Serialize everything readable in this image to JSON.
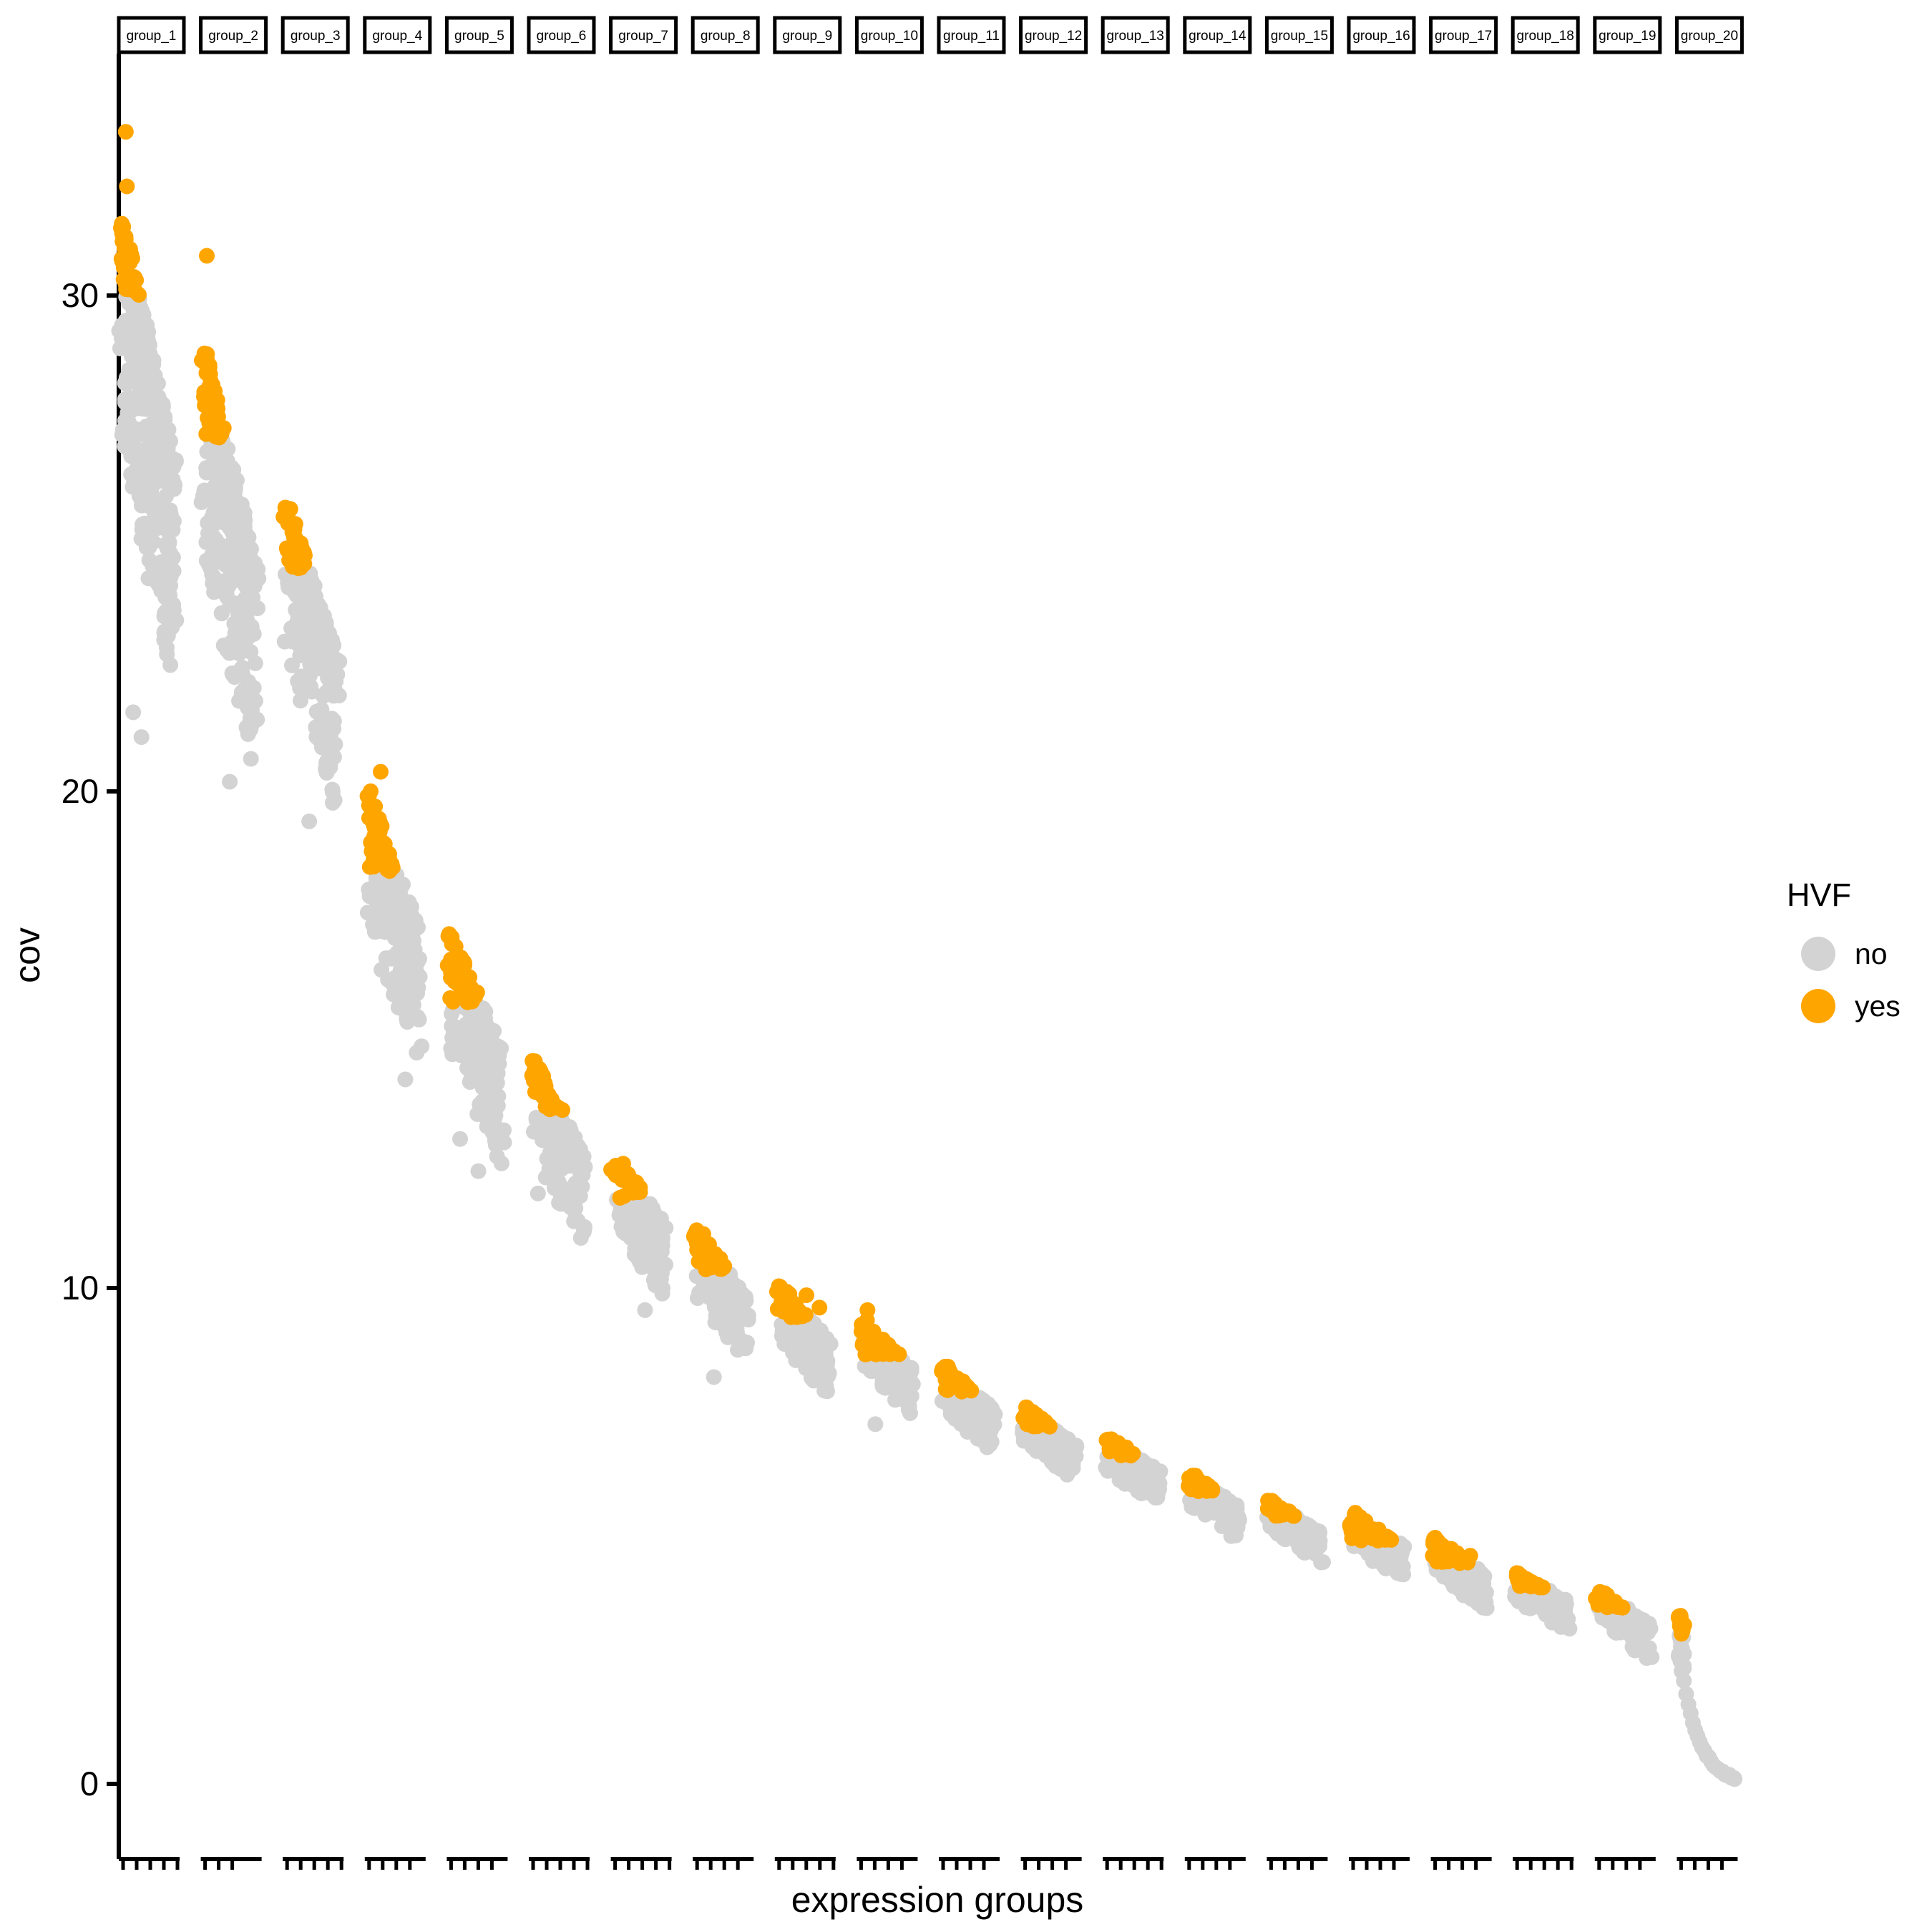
{
  "plot": {
    "x_axis_title": "expression groups",
    "y_axis_title": "cov",
    "background": "#ffffff",
    "axis_color": "#000000"
  },
  "legend": {
    "title": "HVF",
    "items": [
      {
        "label": "no",
        "color": "#D3D3D3"
      },
      {
        "label": "yes",
        "color": "#FFA500"
      }
    ]
  },
  "chart_data": {
    "type": "scatter",
    "subtype": "faceted-jitter-strip",
    "xlabel": "expression groups",
    "ylabel": "cov",
    "ylim": [
      0,
      34.5
    ],
    "y_ticks": [
      {
        "value": 0,
        "label": "0"
      },
      {
        "value": 10,
        "label": "10"
      },
      {
        "value": 20,
        "label": "20"
      },
      {
        "value": 30,
        "label": "30"
      }
    ],
    "grid": "off",
    "legend_position": "right",
    "point_colors": {
      "no": "#D3D3D3",
      "yes": "#FFA500"
    },
    "facets": [
      {
        "label": "group_1",
        "cov_top": 31.6,
        "cov_bottom": 22.6,
        "hvf_threshold": 30.0,
        "outliers": [
          {
            "t": 0.08,
            "cov": 33.3,
            "hvf": "yes"
          },
          {
            "t": 0.1,
            "cov": 32.2,
            "hvf": "yes"
          },
          {
            "t": 0.22,
            "cov": 21.6,
            "hvf": "no"
          },
          {
            "t": 0.38,
            "cov": 21.1,
            "hvf": "no"
          }
        ]
      },
      {
        "label": "group_2",
        "cov_top": 29.0,
        "cov_bottom": 20.8,
        "hvf_threshold": 27.1,
        "outliers": [
          {
            "t": 0.06,
            "cov": 30.8,
            "hvf": "yes"
          },
          {
            "t": 0.5,
            "cov": 20.2,
            "hvf": "no"
          }
        ]
      },
      {
        "label": "group_3",
        "cov_top": 25.9,
        "cov_bottom": 19.9,
        "hvf_threshold": 24.5,
        "outliers": [
          {
            "t": 0.45,
            "cov": 19.4,
            "hvf": "no"
          }
        ]
      },
      {
        "label": "group_4",
        "cov_top": 20.1,
        "cov_bottom": 14.6,
        "hvf_threshold": 18.4,
        "outliers": [
          {
            "t": 0.25,
            "cov": 20.4,
            "hvf": "yes"
          },
          {
            "t": 0.72,
            "cov": 14.2,
            "hvf": "no"
          }
        ]
      },
      {
        "label": "group_5",
        "cov_top": 17.2,
        "cov_bottom": 12.7,
        "hvf_threshold": 15.7,
        "outliers": [
          {
            "t": 0.2,
            "cov": 13.0,
            "hvf": "no"
          },
          {
            "t": 0.55,
            "cov": 12.35,
            "hvf": "no"
          }
        ]
      },
      {
        "label": "group_6",
        "cov_top": 14.7,
        "cov_bottom": 11.0,
        "hvf_threshold": 13.55,
        "outliers": [
          {
            "t": 0.12,
            "cov": 11.9,
            "hvf": "no"
          }
        ]
      },
      {
        "label": "group_7",
        "cov_top": 12.8,
        "cov_bottom": 9.9,
        "hvf_threshold": 11.8,
        "outliers": [
          {
            "t": 0.6,
            "cov": 9.55,
            "hvf": "no"
          }
        ]
      },
      {
        "label": "group_8",
        "cov_top": 11.25,
        "cov_bottom": 8.5,
        "hvf_threshold": 10.35,
        "outliers": [
          {
            "t": 0.35,
            "cov": 8.2,
            "hvf": "no"
          }
        ]
      },
      {
        "label": "group_9",
        "cov_top": 10.1,
        "cov_bottom": 7.9,
        "hvf_threshold": 9.4,
        "outliers": [
          {
            "t": 0.55,
            "cov": 9.85,
            "hvf": "yes"
          },
          {
            "t": 0.8,
            "cov": 9.6,
            "hvf": "yes"
          }
        ]
      },
      {
        "label": "group_10",
        "cov_top": 9.45,
        "cov_bottom": 7.5,
        "hvf_threshold": 8.65,
        "outliers": [
          {
            "t": 0.15,
            "cov": 9.55,
            "hvf": "yes"
          },
          {
            "t": 0.3,
            "cov": 7.25,
            "hvf": "no"
          }
        ]
      },
      {
        "label": "group_11",
        "cov_top": 8.5,
        "cov_bottom": 6.75,
        "hvf_threshold": 7.9,
        "outliers": []
      },
      {
        "label": "group_12",
        "cov_top": 7.65,
        "cov_bottom": 6.2,
        "hvf_threshold": 7.2,
        "outliers": []
      },
      {
        "label": "group_13",
        "cov_top": 7.05,
        "cov_bottom": 5.7,
        "hvf_threshold": 6.6,
        "outliers": []
      },
      {
        "label": "group_14",
        "cov_top": 6.3,
        "cov_bottom": 5.0,
        "hvf_threshold": 5.9,
        "outliers": []
      },
      {
        "label": "group_15",
        "cov_top": 5.75,
        "cov_bottom": 4.5,
        "hvf_threshold": 5.4,
        "outliers": []
      },
      {
        "label": "group_16",
        "cov_top": 5.5,
        "cov_bottom": 4.2,
        "hvf_threshold": 4.9,
        "outliers": []
      },
      {
        "label": "group_17",
        "cov_top": 5.0,
        "cov_bottom": 3.6,
        "hvf_threshold": 4.45,
        "outliers": [
          {
            "t": 0.45,
            "cov": 4.65,
            "hvf": "yes"
          },
          {
            "t": 0.7,
            "cov": 4.6,
            "hvf": "yes"
          }
        ]
      },
      {
        "label": "group_18",
        "cov_top": 4.3,
        "cov_bottom": 3.15,
        "hvf_threshold": 3.95,
        "outliers": []
      },
      {
        "label": "group_19",
        "cov_top": 3.95,
        "cov_bottom": 2.6,
        "hvf_threshold": 3.55,
        "outliers": []
      },
      {
        "label": "group_20",
        "cov_top": 3.4,
        "cov_bottom": 0.05,
        "hvf_threshold": 3.0,
        "tail": true,
        "outliers": []
      }
    ]
  }
}
